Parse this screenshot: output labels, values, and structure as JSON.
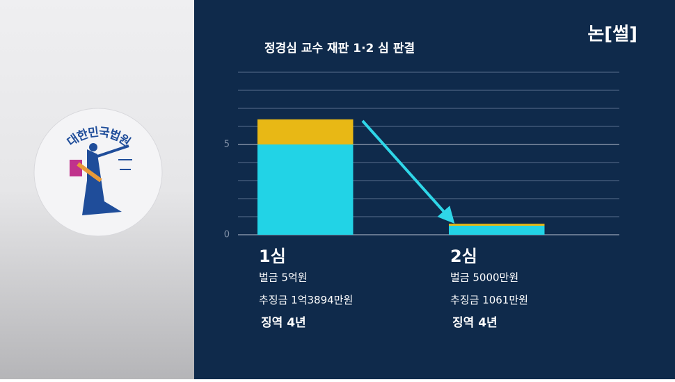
{
  "chart_data": {
    "type": "stacked_bar",
    "title": "정경심 교수 재판 1·2 심 판결",
    "categories": [
      "1심",
      "2심"
    ],
    "series": [
      {
        "color": "#22d3e6",
        "values": [
          5,
          0.5
        ]
      },
      {
        "color": "#e8b815",
        "values": [
          1.39,
          0.11
        ]
      }
    ],
    "details": [
      [
        "벌금 5억원",
        "추징금 1억3894만원",
        "징역 4년"
      ],
      [
        "벌금 5000만원",
        "추징금 1061만원",
        "징역 4년"
      ]
    ],
    "ylim": [
      0,
      9
    ],
    "yticks": [
      0,
      5
    ],
    "grid_lines": [
      1,
      2,
      3,
      4,
      6,
      7,
      8,
      9
    ],
    "grid": true
  },
  "logo": "논[썰]",
  "emblem": "대한민국법원"
}
